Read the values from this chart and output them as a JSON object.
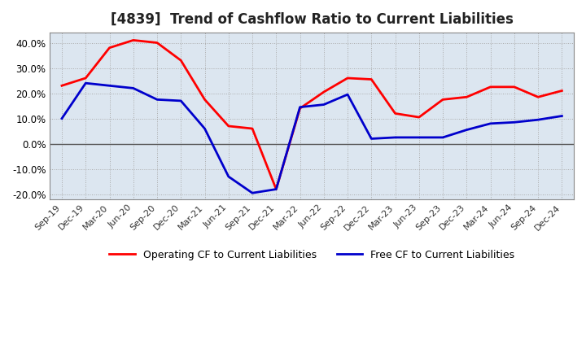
{
  "title": "[4839]  Trend of Cashflow Ratio to Current Liabilities",
  "title_fontsize": 12,
  "ylim": [
    -0.22,
    0.44
  ],
  "yticks": [
    -0.2,
    -0.1,
    0.0,
    0.1,
    0.2,
    0.3,
    0.4
  ],
  "background_color": "#ffffff",
  "plot_bg_color": "#dce6f0",
  "grid_color": "#aaaaaa",
  "dates": [
    "Sep-19",
    "Dec-19",
    "Mar-20",
    "Jun-20",
    "Sep-20",
    "Dec-20",
    "Mar-21",
    "Jun-21",
    "Sep-21",
    "Dec-21",
    "Mar-22",
    "Jun-22",
    "Sep-22",
    "Dec-22",
    "Mar-23",
    "Jun-23",
    "Sep-23",
    "Dec-23",
    "Mar-24",
    "Jun-24",
    "Sep-24",
    "Dec-24"
  ],
  "operating_cf": [
    0.23,
    0.26,
    0.38,
    0.41,
    0.4,
    0.33,
    0.175,
    0.07,
    0.06,
    -0.18,
    0.14,
    0.205,
    0.26,
    0.255,
    0.12,
    0.105,
    0.175,
    0.185,
    0.225,
    0.225,
    0.185,
    0.21
  ],
  "free_cf": [
    0.1,
    0.24,
    0.23,
    0.22,
    0.175,
    0.17,
    0.06,
    -0.13,
    -0.195,
    -0.18,
    0.145,
    0.155,
    0.195,
    0.02,
    0.025,
    0.025,
    0.025,
    0.055,
    0.08,
    0.085,
    0.095,
    0.11
  ],
  "operating_color": "#ff0000",
  "free_color": "#0000cc",
  "line_width": 2.0,
  "legend_labels": [
    "Operating CF to Current Liabilities",
    "Free CF to Current Liabilities"
  ]
}
